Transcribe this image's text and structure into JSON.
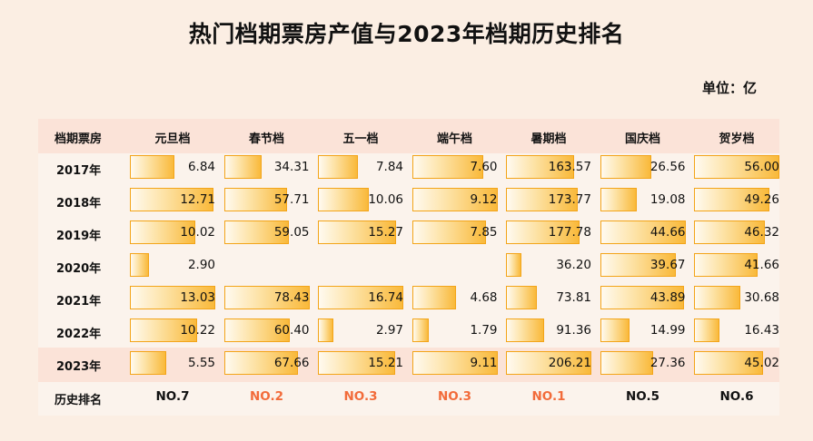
{
  "title": "热门档期票房产值与2023年档期历史排名",
  "unit": "单位：亿",
  "corner_label": "档期票房",
  "rank_label": "历史排名",
  "colors": {
    "highlight": "#f26b3a",
    "normal": "#111111",
    "bar": "#f9b93a"
  },
  "chart_data": {
    "type": "table",
    "columns": [
      "元旦档",
      "春节档",
      "五一档",
      "端午档",
      "暑期档",
      "国庆档",
      "贺岁档"
    ],
    "rows": [
      {
        "year": "2017年",
        "values": [
          6.84,
          34.31,
          7.84,
          7.6,
          163.57,
          26.56,
          56.0
        ],
        "labels": [
          "6.84",
          "34.31",
          "7.84",
          "7.60",
          "163.57",
          "26.56",
          "56.00"
        ]
      },
      {
        "year": "2018年",
        "values": [
          12.71,
          57.71,
          10.06,
          9.12,
          173.77,
          19.08,
          49.26
        ],
        "labels": [
          "12.71",
          "57.71",
          "10.06",
          "9.12",
          "173.77",
          "19.08",
          "49.26"
        ]
      },
      {
        "year": "2019年",
        "values": [
          10.02,
          59.05,
          15.27,
          7.85,
          177.78,
          44.66,
          46.32
        ],
        "labels": [
          "10.02",
          "59.05",
          "15.27",
          "7.85",
          "177.78",
          "44.66",
          "46.32"
        ]
      },
      {
        "year": "2020年",
        "values": [
          2.9,
          null,
          null,
          null,
          36.2,
          39.67,
          41.66
        ],
        "labels": [
          "2.90",
          "",
          "",
          "",
          "36.20",
          "39.67",
          "41.66"
        ]
      },
      {
        "year": "2021年",
        "values": [
          13.03,
          78.43,
          16.74,
          4.68,
          73.81,
          43.89,
          30.68
        ],
        "labels": [
          "13.03",
          "78.43",
          "16.74",
          "4.68",
          "73.81",
          "43.89",
          "30.68"
        ]
      },
      {
        "year": "2022年",
        "values": [
          10.22,
          60.4,
          2.97,
          1.79,
          91.36,
          14.99,
          16.43
        ],
        "labels": [
          "10.22",
          "60.40",
          "2.97",
          "1.79",
          "91.36",
          "14.99",
          "16.43"
        ]
      },
      {
        "year": "2023年",
        "values": [
          5.55,
          67.66,
          15.21,
          9.11,
          206.21,
          27.36,
          45.02
        ],
        "labels": [
          "5.55",
          "67.66",
          "15.21",
          "9.11",
          "206.21",
          "27.36",
          "45.02"
        ]
      }
    ],
    "ranks": [
      "NO.7",
      "NO.2",
      "NO.3",
      "NO.3",
      "NO.1",
      "NO.5",
      "NO.6"
    ],
    "rank_highlight": [
      false,
      true,
      true,
      true,
      true,
      false,
      false
    ]
  }
}
